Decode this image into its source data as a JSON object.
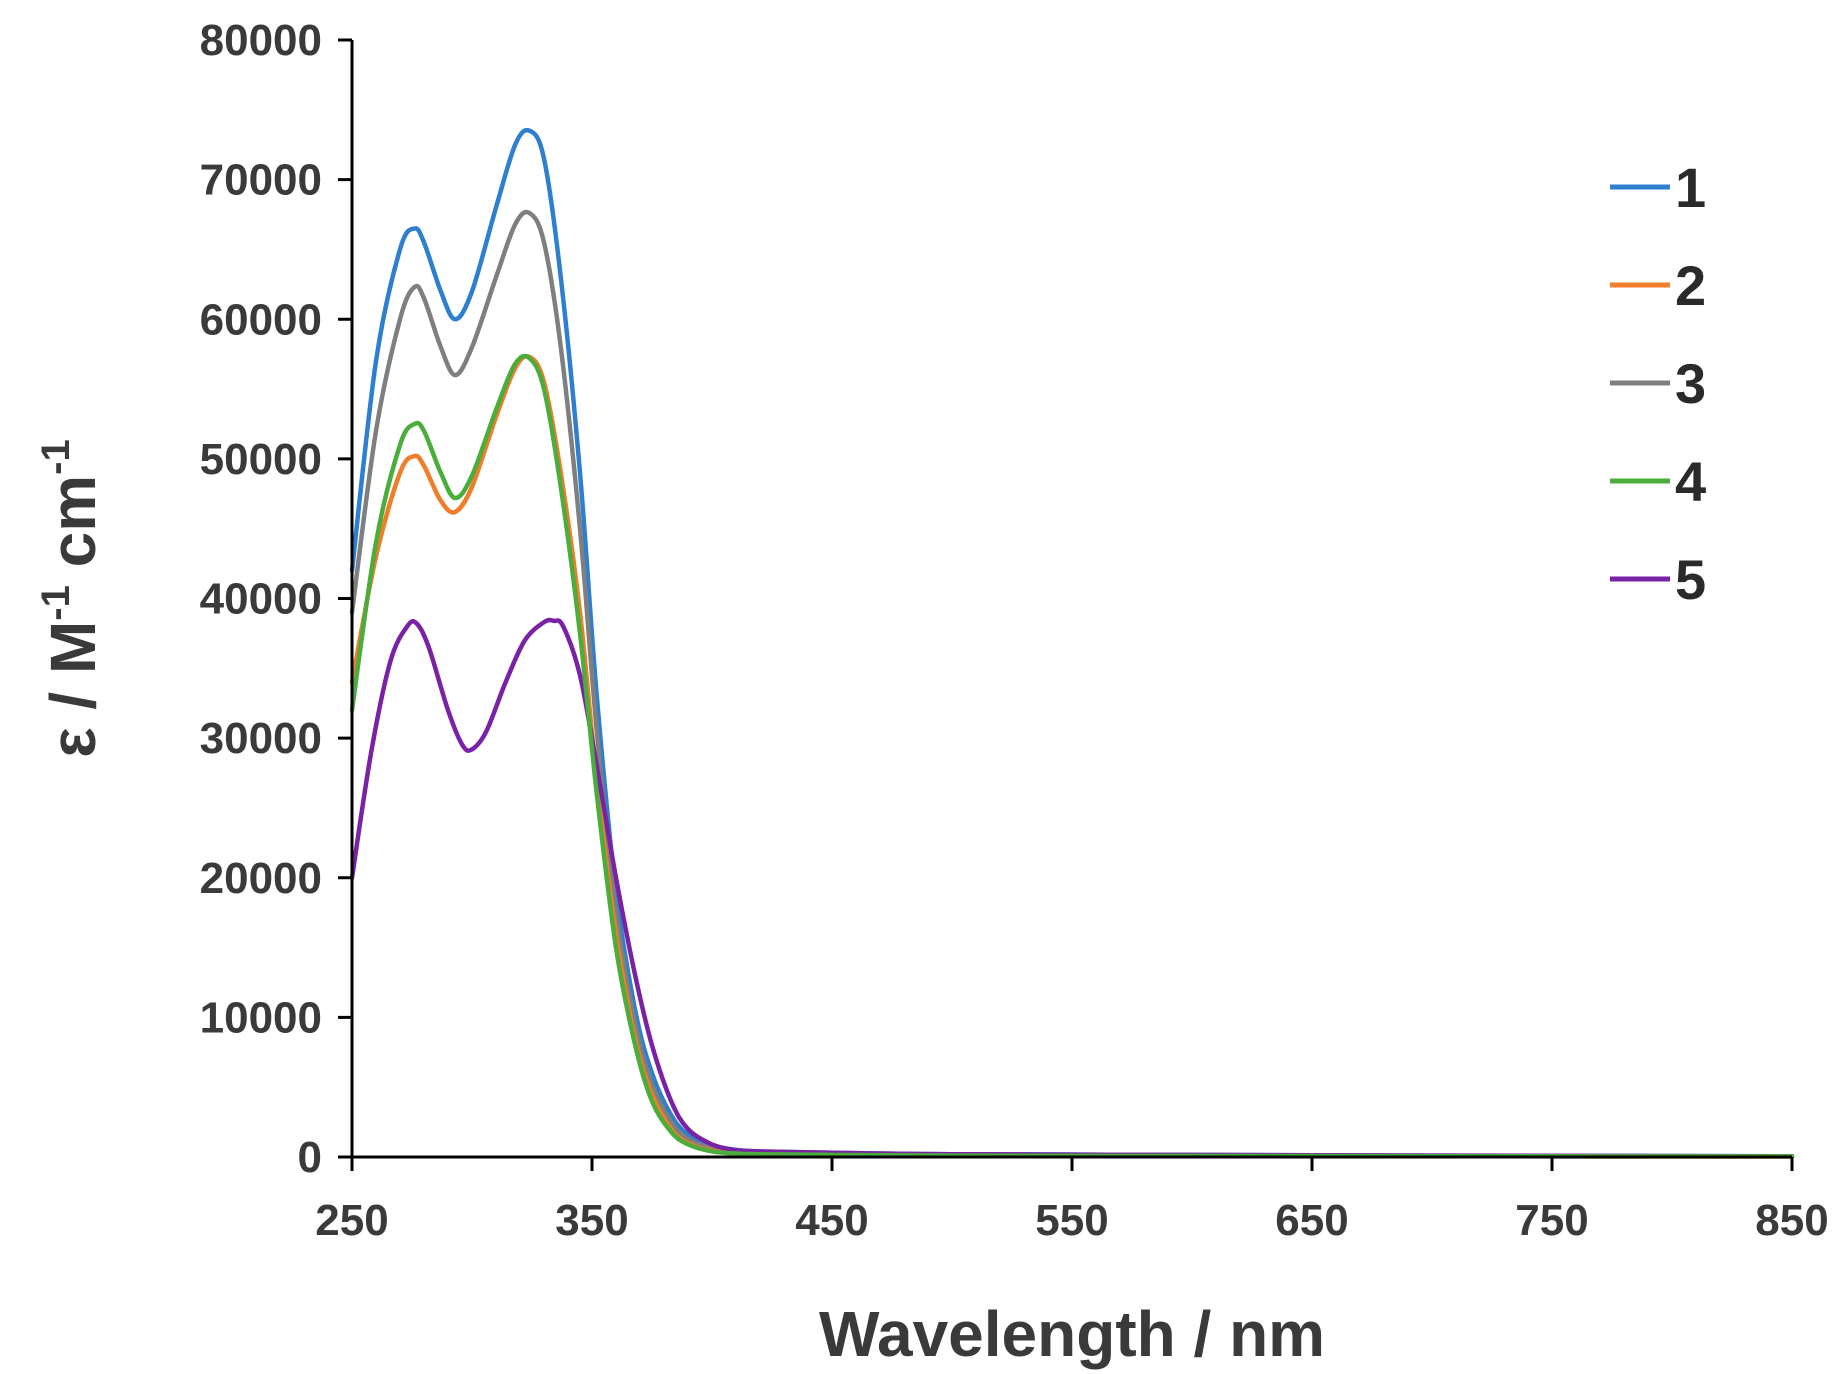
{
  "chart_data": {
    "type": "line",
    "title": "",
    "xlabel": "Wavelength / nm",
    "ylabel": "ε / M-1 cm-1",
    "ylabel_parts": {
      "prefix": "ε / M",
      "sup1": "-1",
      "mid": " cm",
      "sup2": "-1"
    },
    "xlim": [
      250,
      850
    ],
    "ylim": [
      0,
      80000
    ],
    "x_ticks": [
      250,
      350,
      450,
      550,
      650,
      750,
      850
    ],
    "y_ticks": [
      0,
      10000,
      20000,
      30000,
      40000,
      50000,
      60000,
      70000,
      80000
    ],
    "x_tick_labels": [
      "250",
      "350",
      "450",
      "550",
      "650",
      "750",
      "850"
    ],
    "y_tick_labels": [
      "0",
      "10000",
      "20000",
      "30000",
      "40000",
      "50000",
      "60000",
      "70000",
      "80000"
    ],
    "grid": false,
    "legend_position": "top-right",
    "series": [
      {
        "name": "1",
        "color": "#2f7fd0",
        "x": [
          250,
          260,
          270,
          276,
          280,
          287,
          293,
          300,
          310,
          318,
          324,
          330,
          337,
          345,
          352,
          360,
          368,
          375,
          383,
          390,
          400,
          410,
          420,
          450,
          500,
          600,
          700,
          850
        ],
        "y": [
          42000,
          57000,
          65000,
          66500,
          65500,
          62000,
          60000,
          62000,
          68000,
          72500,
          73500,
          71500,
          63000,
          49000,
          33000,
          19000,
          10500,
          6000,
          3000,
          1600,
          800,
          500,
          400,
          300,
          200,
          150,
          100,
          50
        ]
      },
      {
        "name": "2",
        "color": "#f07d29",
        "x": [
          250,
          260,
          270,
          276,
          280,
          287,
          293,
          300,
          310,
          318,
          324,
          330,
          337,
          345,
          352,
          360,
          368,
          375,
          383,
          390,
          400,
          410,
          420,
          450,
          500,
          600,
          700,
          850
        ],
        "y": [
          34000,
          43000,
          49000,
          50200,
          49500,
          47000,
          46200,
          48000,
          53000,
          56500,
          57300,
          55500,
          49000,
          39000,
          27000,
          16000,
          8500,
          4500,
          2000,
          1000,
          450,
          250,
          200,
          150,
          100,
          80,
          60,
          40
        ]
      },
      {
        "name": "3",
        "color": "#7f7f7f",
        "x": [
          250,
          260,
          270,
          276,
          280,
          287,
          293,
          300,
          310,
          318,
          324,
          330,
          337,
          345,
          352,
          360,
          368,
          375,
          383,
          390,
          400,
          410,
          420,
          450,
          500,
          600,
          700,
          850
        ],
        "y": [
          39000,
          52000,
          60000,
          62300,
          61500,
          58000,
          56000,
          58000,
          63000,
          66800,
          67600,
          65500,
          58000,
          45000,
          30500,
          17500,
          9500,
          5200,
          2500,
          1300,
          600,
          350,
          250,
          200,
          150,
          100,
          80,
          40
        ]
      },
      {
        "name": "4",
        "color": "#4aad3c",
        "x": [
          250,
          260,
          270,
          276,
          280,
          287,
          293,
          300,
          310,
          318,
          324,
          330,
          337,
          345,
          352,
          360,
          368,
          375,
          383,
          390,
          400,
          410,
          420,
          450,
          500,
          600,
          700,
          850
        ],
        "y": [
          32000,
          44000,
          51000,
          52500,
          52000,
          49000,
          47200,
          48800,
          53500,
          56800,
          57200,
          55000,
          48000,
          37500,
          26000,
          15000,
          8000,
          4000,
          1800,
          900,
          400,
          250,
          200,
          150,
          100,
          80,
          60,
          40
        ]
      },
      {
        "name": "5",
        "color": "#7a22a5",
        "x": [
          250,
          258,
          266,
          273,
          277,
          282,
          290,
          296,
          300,
          306,
          314,
          322,
          330,
          334,
          338,
          345,
          352,
          360,
          368,
          375,
          383,
          390,
          400,
          410,
          420,
          450,
          500,
          600,
          700,
          850
        ],
        "y": [
          20000,
          29000,
          35500,
          38000,
          38200,
          36500,
          32000,
          29500,
          29200,
          30500,
          34000,
          37000,
          38300,
          38400,
          38000,
          34500,
          28000,
          20000,
          13000,
          8000,
          4000,
          2000,
          900,
          500,
          400,
          300,
          200,
          150,
          100,
          50
        ]
      }
    ]
  }
}
